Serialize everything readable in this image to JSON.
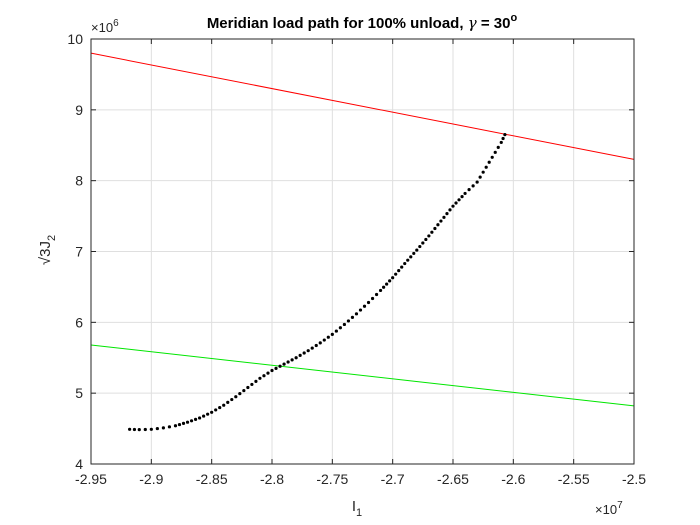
{
  "chart_data": {
    "type": "scatter",
    "title": {
      "prefix": "Meridian load path for 100% unload, ",
      "symbol": "γ",
      "suffix": " = 30",
      "superscript": "o"
    },
    "xlabel": {
      "base": "I",
      "subscript": "1"
    },
    "ylabel": {
      "base": "√3J",
      "subscript": "2"
    },
    "x_multiplier": {
      "base": "×10",
      "exponent": "7"
    },
    "y_multiplier": {
      "base": "×10",
      "exponent": "6"
    },
    "xlim": [
      -2.95,
      -2.5
    ],
    "ylim": [
      4,
      10
    ],
    "x_ticks": [
      -2.95,
      -2.9,
      -2.85,
      -2.8,
      -2.75,
      -2.7,
      -2.65,
      -2.6,
      -2.55,
      -2.5
    ],
    "x_tick_labels": [
      "-2.95",
      "-2.9",
      "-2.85",
      "-2.8",
      "-2.75",
      "-2.7",
      "-2.65",
      "-2.6",
      "-2.55",
      "-2.5"
    ],
    "y_ticks": [
      4,
      5,
      6,
      7,
      8,
      9,
      10
    ],
    "y_tick_labels": [
      "4",
      "5",
      "6",
      "7",
      "8",
      "9",
      "10"
    ],
    "grid": true,
    "series": [
      {
        "kind": "line",
        "color": "#ff0000",
        "x": [
          -2.95,
          -2.5
        ],
        "y": [
          9.8,
          8.3
        ]
      },
      {
        "kind": "line",
        "color": "#00e600",
        "x": [
          -2.95,
          -2.5
        ],
        "y": [
          5.68,
          4.82
        ]
      },
      {
        "kind": "dots",
        "color": "#000000",
        "x": [
          -2.918,
          -2.91,
          -2.9,
          -2.89,
          -2.88,
          -2.87,
          -2.86,
          -2.85,
          -2.84,
          -2.83,
          -2.82,
          -2.81,
          -2.8,
          -2.79,
          -2.78,
          -2.77,
          -2.76,
          -2.75,
          -2.74,
          -2.73,
          -2.72,
          -2.71,
          -2.7,
          -2.69,
          -2.68,
          -2.67,
          -2.66,
          -2.65,
          -2.64,
          -2.63,
          -2.625,
          -2.62,
          -2.615,
          -2.61,
          -2.607
        ],
        "y": [
          4.49,
          4.485,
          4.49,
          4.51,
          4.54,
          4.59,
          4.65,
          4.73,
          4.83,
          4.95,
          5.08,
          5.21,
          5.32,
          5.41,
          5.5,
          5.6,
          5.71,
          5.83,
          5.97,
          6.12,
          6.28,
          6.45,
          6.63,
          6.83,
          7.02,
          7.22,
          7.43,
          7.64,
          7.82,
          7.98,
          8.12,
          8.26,
          8.4,
          8.54,
          8.65
        ]
      }
    ]
  }
}
